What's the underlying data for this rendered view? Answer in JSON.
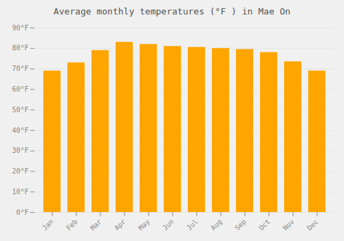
{
  "chart_data": {
    "type": "bar",
    "title": "Average monthly temperatures (°F ) in Mae On",
    "categories": [
      "Jan",
      "Feb",
      "Mar",
      "Apr",
      "May",
      "Jun",
      "Jul",
      "Aug",
      "Sep",
      "Oct",
      "Nov",
      "Dec"
    ],
    "values": [
      69,
      73,
      79,
      83,
      82,
      81,
      80.5,
      80,
      79.5,
      78,
      73.5,
      69
    ],
    "color": "#FFA500",
    "ylim": [
      0,
      90
    ],
    "yticks": [
      {
        "value": 0,
        "label": "0°F"
      },
      {
        "value": 10,
        "label": "10°F"
      },
      {
        "value": 20,
        "label": "20°F"
      },
      {
        "value": 30,
        "label": "30°F"
      },
      {
        "value": 40,
        "label": "40°F"
      },
      {
        "value": 50,
        "label": "50°F"
      },
      {
        "value": 60,
        "label": "60°F"
      },
      {
        "value": 70,
        "label": "70°F"
      },
      {
        "value": 80,
        "label": "80°F"
      },
      {
        "value": 90,
        "label": "90°F"
      }
    ],
    "grid": true
  }
}
